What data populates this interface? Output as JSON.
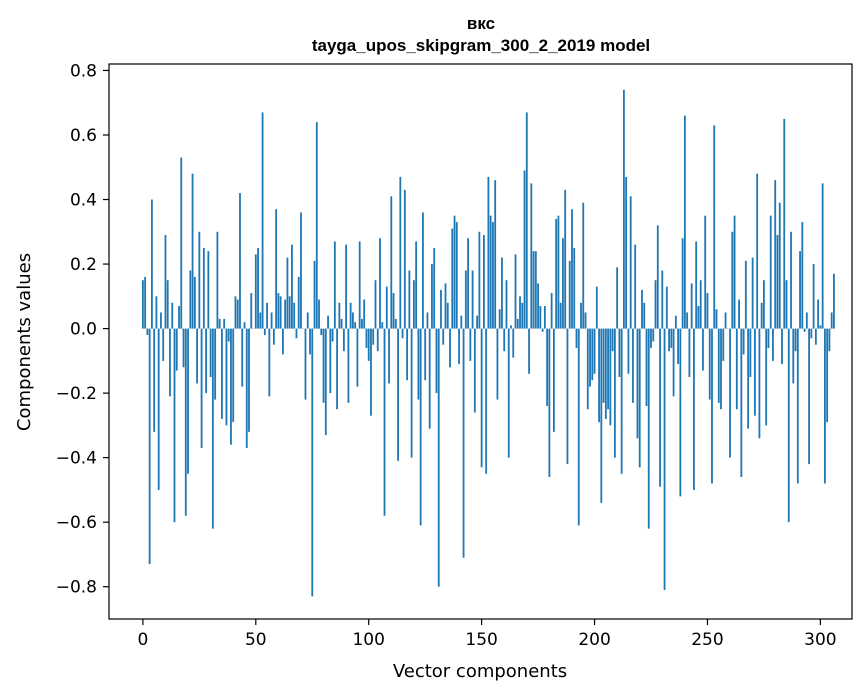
{
  "chart_data": {
    "type": "bar",
    "title": "вкс",
    "subtitle": "tayga_upos_skipgram_300_2_2019 model",
    "xlabel": "Vector components",
    "ylabel": "Components values",
    "xlim": [
      -15,
      314
    ],
    "ylim": [
      -0.9,
      0.82
    ],
    "xticks": [
      0,
      50,
      100,
      150,
      200,
      250,
      300
    ],
    "xtick_labels": [
      "0",
      "50",
      "100",
      "150",
      "200",
      "250",
      "300"
    ],
    "yticks": [
      -0.8,
      -0.6,
      -0.4,
      -0.2,
      0.0,
      0.2,
      0.4,
      0.6,
      0.8
    ],
    "ytick_labels": [
      "−0.8",
      "−0.6",
      "−0.4",
      "−0.2",
      "0.0",
      "0.2",
      "0.4",
      "0.6",
      "0.8"
    ],
    "grid": false,
    "bar_color": "#1f77b4",
    "values": [
      0.15,
      0.16,
      -0.02,
      -0.73,
      0.4,
      -0.32,
      0.1,
      -0.5,
      0.05,
      -0.1,
      0.29,
      0.15,
      -0.21,
      0.08,
      -0.6,
      -0.13,
      0.07,
      0.53,
      -0.12,
      -0.58,
      -0.45,
      0.18,
      0.48,
      0.16,
      -0.17,
      0.3,
      -0.37,
      0.25,
      -0.2,
      0.24,
      -0.15,
      -0.62,
      -0.22,
      0.3,
      0.03,
      -0.28,
      0.03,
      -0.3,
      -0.04,
      -0.36,
      -0.29,
      0.1,
      0.09,
      0.42,
      -0.18,
      0.02,
      -0.37,
      -0.32,
      0.11,
      0.0,
      0.23,
      0.25,
      0.05,
      0.67,
      -0.02,
      0.08,
      -0.21,
      0.05,
      -0.05,
      0.37,
      0.11,
      0.1,
      -0.08,
      0.09,
      0.22,
      0.1,
      0.26,
      0.08,
      -0.03,
      0.16,
      0.36,
      0.0,
      -0.22,
      0.05,
      -0.08,
      -0.83,
      0.21,
      0.64,
      0.09,
      -0.02,
      -0.23,
      -0.33,
      0.04,
      -0.2,
      -0.04,
      0.27,
      -0.25,
      0.08,
      0.03,
      -0.07,
      0.26,
      -0.23,
      0.08,
      0.05,
      0.02,
      -0.18,
      0.27,
      0.03,
      0.09,
      -0.06,
      -0.1,
      -0.27,
      -0.05,
      0.15,
      -0.07,
      0.28,
      0.02,
      -0.58,
      0.13,
      -0.17,
      0.41,
      0.11,
      0.03,
      -0.41,
      0.47,
      -0.03,
      0.43,
      -0.16,
      0.18,
      -0.4,
      0.15,
      0.27,
      -0.22,
      -0.61,
      0.36,
      -0.16,
      0.05,
      -0.31,
      0.2,
      0.25,
      -0.2,
      -0.8,
      0.12,
      -0.05,
      0.14,
      0.08,
      -0.12,
      0.31,
      0.35,
      0.33,
      -0.11,
      0.04,
      -0.71,
      0.18,
      0.28,
      -0.1,
      0.18,
      -0.26,
      0.04,
      0.3,
      -0.43,
      0.29,
      -0.45,
      0.47,
      0.35,
      0.33,
      0.46,
      -0.22,
      0.06,
      0.22,
      -0.07,
      0.15,
      -0.4,
      0.01,
      -0.09,
      0.23,
      0.03,
      0.1,
      0.08,
      0.49,
      0.67,
      -0.14,
      0.45,
      0.24,
      0.24,
      0.14,
      0.07,
      -0.01,
      0.07,
      -0.24,
      -0.46,
      0.11,
      -0.32,
      0.34,
      0.35,
      0.08,
      0.28,
      0.43,
      -0.42,
      0.21,
      0.37,
      0.25,
      -0.06,
      -0.61,
      0.08,
      0.39,
      0.05,
      -0.25,
      -0.18,
      -0.16,
      -0.14,
      0.13,
      -0.29,
      -0.54,
      -0.23,
      -0.28,
      -0.25,
      -0.3,
      -0.07,
      -0.4,
      0.19,
      -0.15,
      -0.45,
      0.74,
      0.47,
      -0.14,
      0.41,
      -0.23,
      0.26,
      -0.34,
      -0.43,
      0.12,
      0.08,
      -0.24,
      -0.62,
      -0.06,
      -0.04,
      0.15,
      0.32,
      -0.49,
      0.18,
      -0.81,
      0.13,
      -0.07,
      -0.06,
      -0.21,
      0.04,
      -0.11,
      -0.52,
      0.28,
      0.66,
      0.05,
      -0.15,
      0.14,
      -0.5,
      0.27,
      0.07,
      0.15,
      -0.13,
      0.35,
      0.11,
      -0.22,
      -0.48,
      0.63,
      0.06,
      -0.23,
      -0.25,
      -0.1,
      0.05,
      0.0,
      -0.4,
      0.3,
      0.35,
      -0.25,
      0.09,
      -0.46,
      -0.08,
      0.21,
      -0.31,
      -0.15,
      0.22,
      -0.27,
      0.48,
      -0.34,
      0.08,
      0.15,
      -0.3,
      -0.06,
      0.35,
      -0.1,
      0.46,
      0.29,
      0.39,
      -0.11,
      0.65,
      0.15,
      -0.6,
      0.3,
      -0.17,
      -0.07,
      -0.48,
      0.24,
      0.33,
      -0.01,
      0.05,
      -0.42,
      -0.03,
      0.2,
      -0.05,
      0.09,
      0.01,
      0.45,
      -0.48,
      -0.29,
      -0.07,
      0.05,
      0.17
    ]
  }
}
